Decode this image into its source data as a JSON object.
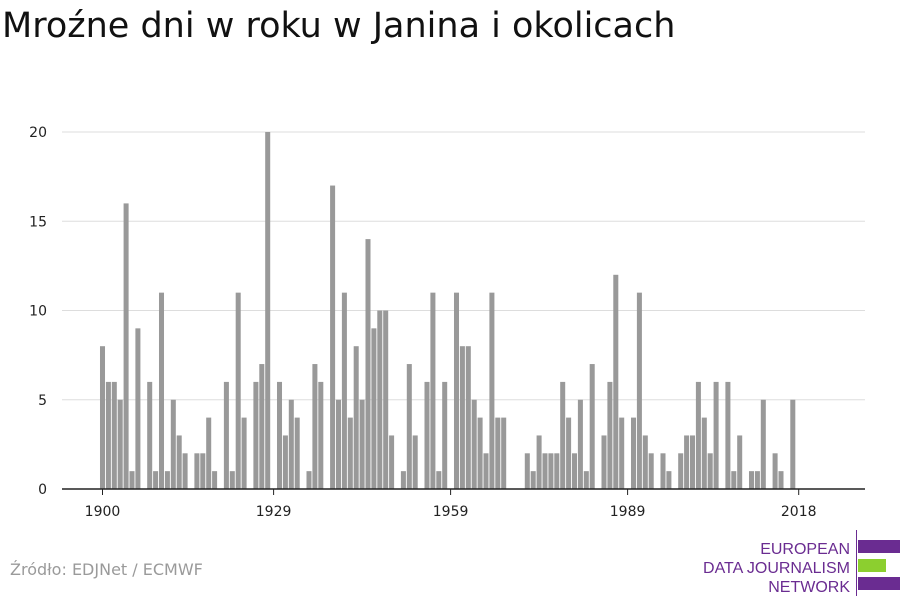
{
  "title": "Mroźne dni w roku w Janina i okolicach",
  "source": "Źródło: EDJNet / ECMWF",
  "logo": {
    "line1": "EUROPEAN",
    "line2": "DATA JOURNALISM",
    "line3": "NETWORK",
    "color_primary": "#6a2c91",
    "color_accent": "#8ccf2f"
  },
  "chart_data": {
    "type": "bar",
    "title": "Mroźne dni w roku w Janina i okolicach",
    "xlabel": "",
    "ylabel": "",
    "x_start": 1900,
    "x_end": 2018,
    "x_ticks": [
      1900,
      1929,
      1959,
      1989,
      2018
    ],
    "y_ticks": [
      0,
      5,
      10,
      15,
      20
    ],
    "ylim": [
      0,
      20
    ],
    "grid": true,
    "bar_color": "#999999",
    "values": [
      8,
      6,
      6,
      5,
      16,
      1,
      9,
      0,
      6,
      1,
      11,
      1,
      5,
      3,
      2,
      0,
      2,
      2,
      4,
      1,
      0,
      6,
      1,
      11,
      4,
      0,
      6,
      7,
      20,
      0,
      6,
      3,
      5,
      4,
      0,
      1,
      7,
      6,
      0,
      17,
      5,
      11,
      4,
      8,
      5,
      14,
      9,
      10,
      10,
      3,
      0,
      1,
      7,
      3,
      0,
      6,
      11,
      1,
      6,
      0,
      11,
      8,
      8,
      5,
      4,
      2,
      11,
      4,
      4,
      0,
      0,
      0,
      2,
      1,
      3,
      2,
      2,
      2,
      6,
      4,
      2,
      5,
      1,
      7,
      0,
      3,
      6,
      12,
      4,
      0,
      4,
      11,
      3,
      2,
      0,
      2,
      1,
      0,
      2,
      3,
      3,
      6,
      4,
      2,
      6,
      0,
      6,
      1,
      3,
      0,
      1,
      1,
      5,
      0,
      2,
      1,
      0,
      5,
      0
    ]
  }
}
